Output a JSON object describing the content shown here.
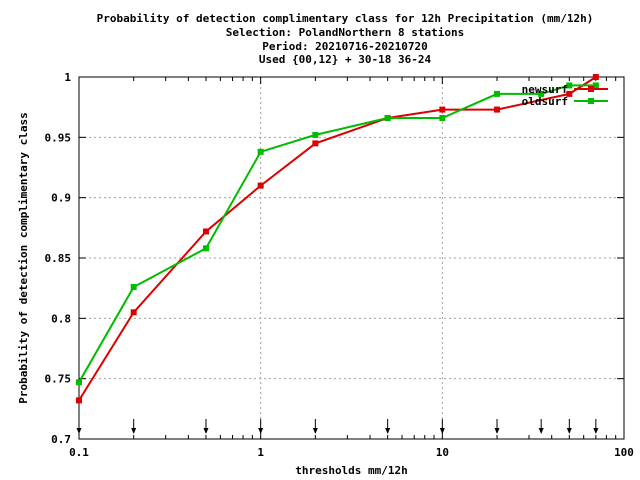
{
  "chart_data": {
    "type": "line",
    "title_lines": [
      "Probability of detection complimentary class  for 12h Precipitation (mm/12h)",
      "Selection: PolandNorthern      8 stations",
      "Period: 20210716-20210720",
      "Used {00,12} + 30-18 36-24"
    ],
    "xlabel": "thresholds mm/12h",
    "ylabel": "Probability of detection complimentary class",
    "x_scale": "log",
    "xlim": [
      0.1,
      100
    ],
    "ylim": [
      0.7,
      1.0
    ],
    "x_ticks": [
      0.1,
      1,
      10,
      100
    ],
    "x_tick_labels": [
      "0.1",
      "1",
      "10",
      "100"
    ],
    "y_ticks": [
      0.7,
      0.75,
      0.8,
      0.85,
      0.9,
      0.95,
      1.0
    ],
    "y_tick_labels": [
      "0.7",
      "0.75",
      "0.8",
      "0.85",
      "0.9",
      "0.95",
      "1"
    ],
    "grid": true,
    "legend_position": "top-right",
    "threshold_markers": [
      0.1,
      0.2,
      0.5,
      1,
      2,
      5,
      10,
      20,
      35,
      50,
      70
    ],
    "series": [
      {
        "name": "newsurf",
        "color": "#dd0000",
        "x": [
          0.1,
          0.2,
          0.5,
          1,
          2,
          5,
          10,
          20,
          50,
          70
        ],
        "values": [
          0.732,
          0.805,
          0.872,
          0.91,
          0.945,
          0.966,
          0.973,
          0.973,
          0.986,
          1.0
        ]
      },
      {
        "name": "oldsurf",
        "color": "#00bb00",
        "x": [
          0.1,
          0.2,
          0.5,
          1,
          2,
          5,
          10,
          20,
          35,
          50,
          70
        ],
        "values": [
          0.747,
          0.826,
          0.858,
          0.938,
          0.952,
          0.966,
          0.966,
          0.986,
          0.986,
          0.993,
          0.993
        ]
      }
    ]
  }
}
